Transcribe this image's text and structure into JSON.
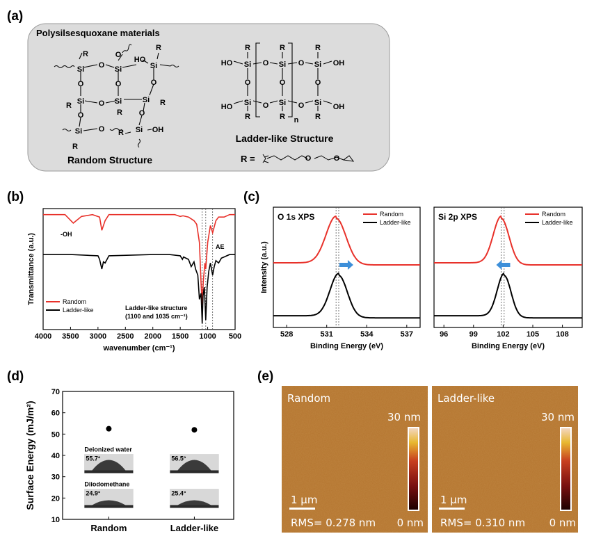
{
  "panels": {
    "a": {
      "letter": "(a)",
      "box_title": "Polysilsesquoxane materials",
      "random_caption": "Random Structure",
      "ladder_caption": "Ladder-like Structure",
      "r_label": "R =",
      "atoms": {
        "si": "Si",
        "o": "O",
        "r": "R",
        "ho": "HO",
        "oh": "OH",
        "n": "n"
      }
    },
    "b": {
      "letter": "(b)",
      "ylabel": "Transmittance (a.u.)",
      "xlabel": "wavenumber (cm⁻¹)",
      "annot_oh": "-OH",
      "annot_ae": "AE",
      "ladder_note_1": "Ladder-like structure",
      "ladder_note_2": "(1100 and 1035 cm⁻¹)"
    },
    "c": {
      "letter": "(c)",
      "o_title": "O 1s XPS",
      "si_title": "Si 2p XPS",
      "ylabel": "Intensity (a.u.)",
      "xlabel": "Binding Energy (eV)"
    },
    "d": {
      "letter": "(d)",
      "ylabel": "Surface Energy (mJ/m²)",
      "water_label": "Deionized water",
      "diiodo_label": "Diiodomethane",
      "angles": {
        "random_water": "55.7°",
        "ladder_water": "56.5°",
        "random_diiodo": "24.9°",
        "ladder_diiodo": "25.4°"
      }
    },
    "e": {
      "letter": "(e)",
      "random_label": "Random",
      "ladder_label": "Ladder-like",
      "scale_top": "30 nm",
      "scale_bottom": "0 nm",
      "scalebar": "1 μm",
      "rms_random": "RMS= 0.278 nm",
      "rms_ladder": "RMS= 0.310 nm"
    }
  },
  "colors": {
    "random": "#e8312a",
    "ladder": "#000000",
    "arrow": "#3d8fd9",
    "afm": "#b4742e",
    "box": "#dcdcdc"
  },
  "chart_data": [
    {
      "type": "line",
      "id": "ftir",
      "title": "",
      "xlabel": "wavenumber (cm⁻¹)",
      "ylabel": "Transmittance (a.u.)",
      "xlim": [
        4000,
        500
      ],
      "x_ticks": [
        4000,
        3500,
        3000,
        2500,
        2000,
        1500,
        1000,
        500
      ],
      "reference_lines": [
        1100,
        1035,
        910
      ],
      "legend": [
        "Random",
        "Ladder-like"
      ],
      "legend_position": "bottom-left",
      "series": [
        {
          "name": "Random",
          "offset": 0.95,
          "points": [
            [
              4000,
              0.95
            ],
            [
              3700,
              0.95
            ],
            [
              3600,
              0.95
            ],
            [
              3450,
              0.88
            ],
            [
              3300,
              0.935
            ],
            [
              3100,
              0.95
            ],
            [
              2970,
              0.93
            ],
            [
              2930,
              0.82
            ],
            [
              2870,
              0.9
            ],
            [
              2800,
              0.95
            ],
            [
              2000,
              0.95
            ],
            [
              1600,
              0.95
            ],
            [
              1500,
              0.935
            ],
            [
              1450,
              0.94
            ],
            [
              1350,
              0.93
            ],
            [
              1250,
              0.9
            ],
            [
              1200,
              0.87
            ],
            [
              1150,
              0.72
            ],
            [
              1120,
              0.38
            ],
            [
              1100,
              0.2
            ],
            [
              1080,
              0.4
            ],
            [
              1050,
              0.55
            ],
            [
              1035,
              0.5
            ],
            [
              1000,
              0.72
            ],
            [
              950,
              0.86
            ],
            [
              910,
              0.8
            ],
            [
              850,
              0.9
            ],
            [
              800,
              0.93
            ],
            [
              700,
              0.93
            ],
            [
              600,
              0.95
            ],
            [
              500,
              0.95
            ]
          ]
        },
        {
          "name": "Ladder-like",
          "offset": 0.62,
          "points": [
            [
              4000,
              0.62
            ],
            [
              3500,
              0.62
            ],
            [
              3000,
              0.61
            ],
            [
              2970,
              0.58
            ],
            [
              2930,
              0.5
            ],
            [
              2900,
              0.56
            ],
            [
              2870,
              0.55
            ],
            [
              2800,
              0.61
            ],
            [
              2000,
              0.62
            ],
            [
              1700,
              0.62
            ],
            [
              1500,
              0.61
            ],
            [
              1460,
              0.58
            ],
            [
              1440,
              0.6
            ],
            [
              1350,
              0.58
            ],
            [
              1300,
              0.52
            ],
            [
              1250,
              0.56
            ],
            [
              1220,
              0.5
            ],
            [
              1180,
              0.45
            ],
            [
              1150,
              0.25
            ],
            [
              1120,
              0.3
            ],
            [
              1100,
              0.05
            ],
            [
              1085,
              0.28
            ],
            [
              1060,
              0.35
            ],
            [
              1035,
              0.08
            ],
            [
              1010,
              0.35
            ],
            [
              980,
              0.48
            ],
            [
              950,
              0.55
            ],
            [
              910,
              0.45
            ],
            [
              880,
              0.52
            ],
            [
              850,
              0.57
            ],
            [
              800,
              0.55
            ],
            [
              750,
              0.59
            ],
            [
              700,
              0.6
            ],
            [
              600,
              0.62
            ],
            [
              500,
              0.62
            ]
          ]
        }
      ]
    },
    {
      "type": "line",
      "id": "xps_o1s",
      "title": "O 1s XPS",
      "xlabel": "Binding Energy (eV)",
      "ylabel": "Intensity (a.u.)",
      "xlim": [
        527,
        538
      ],
      "x_ticks": [
        528,
        531,
        534,
        537
      ],
      "reference_lines": [
        531.7,
        531.9
      ],
      "legend": [
        "Random",
        "Ladder-like"
      ],
      "legend_position": "top-right",
      "series": [
        {
          "name": "Random",
          "center": 531.7,
          "sigma": 0.75,
          "baseline": 0.5,
          "height": 0.44
        },
        {
          "name": "Ladder-like",
          "center": 531.9,
          "sigma": 0.65,
          "baseline": 0.0,
          "height": 0.4
        }
      ]
    },
    {
      "type": "line",
      "id": "xps_si2p",
      "title": "Si 2p XPS",
      "xlabel": "Binding Energy (eV)",
      "ylabel": "",
      "xlim": [
        95,
        110
      ],
      "x_ticks": [
        96,
        99,
        102,
        105,
        108
      ],
      "reference_lines": [
        101.8,
        102.1
      ],
      "legend": [
        "Random",
        "Ladder-like"
      ],
      "legend_position": "top-right",
      "series": [
        {
          "name": "Random",
          "center": 101.8,
          "sigma": 0.8,
          "baseline": 0.5,
          "height": 0.44
        },
        {
          "name": "Ladder-like",
          "center": 102.1,
          "sigma": 0.7,
          "baseline": 0.0,
          "height": 0.4
        }
      ]
    },
    {
      "type": "scatter",
      "id": "surface_energy",
      "title": "",
      "xlabel": "",
      "ylabel": "Surface Energy (mJ/m²)",
      "categories": [
        "Random",
        "Ladder-like"
      ],
      "values": [
        52.5,
        52.0
      ],
      "ylim": [
        10,
        70
      ],
      "y_ticks": [
        10,
        20,
        30,
        40,
        50,
        60,
        70
      ]
    }
  ]
}
